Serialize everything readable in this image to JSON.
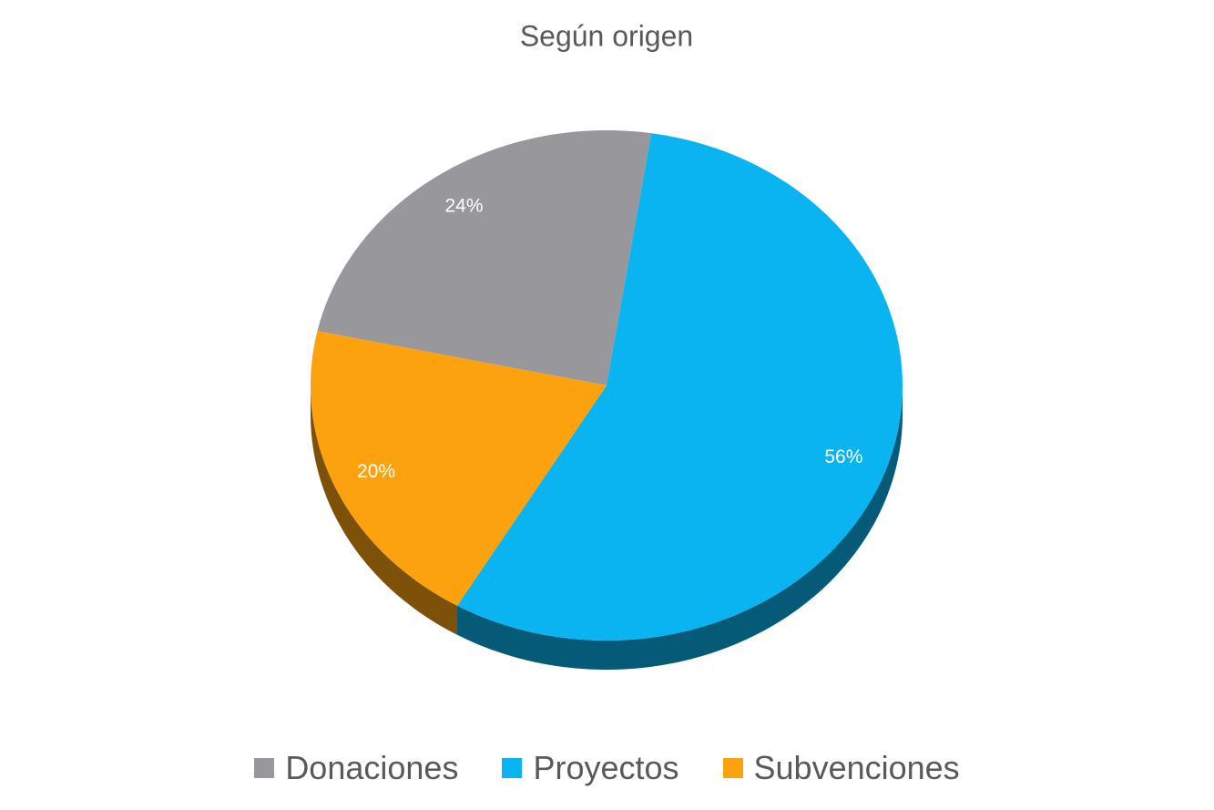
{
  "chart_data": {
    "type": "pie",
    "title": "Según origen",
    "categories": [
      "Donaciones",
      "Proyectos",
      "Subvenciones"
    ],
    "values": [
      24,
      56,
      20
    ],
    "value_labels": [
      "24%",
      "56%",
      "20%"
    ],
    "colors": [
      "#98979b",
      "#0ab4f0",
      "#fca20f"
    ],
    "legend": "bottom"
  }
}
